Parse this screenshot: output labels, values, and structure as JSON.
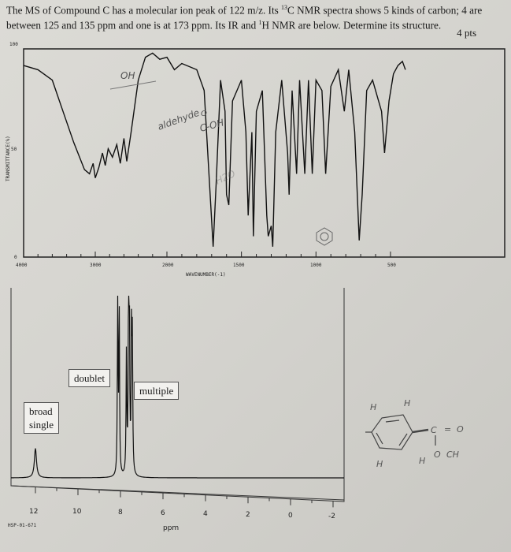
{
  "question": {
    "line1_a": "The MS of Compound C has a molecular ion peak of 122 m/z.  Its ",
    "sup13": "13",
    "line1_b": "C NMR spectra shows 5 kinds of carbon; 4 are between 125 and 135 ppm and one is at 173 ppm.  Its IR and ",
    "sup1": "1",
    "line1_c": "H NMR are below.  Determine its structure.",
    "points": "4 pts"
  },
  "chart_data": [
    {
      "type": "line",
      "title": "",
      "xlabel": "WAVENUMBER(-1)",
      "ylabel": "TRANSMITTANCE(%)",
      "xlim": [
        4000,
        400
      ],
      "ylim": [
        0,
        100
      ],
      "x_ticks": [
        "4000",
        "3000",
        "2000",
        "1500",
        "1000",
        "500"
      ],
      "y_ticks": [
        "100",
        "50",
        "0"
      ],
      "points": [
        [
          4000,
          92
        ],
        [
          3800,
          90
        ],
        [
          3600,
          85
        ],
        [
          3450,
          70
        ],
        [
          3300,
          55
        ],
        [
          3150,
          42
        ],
        [
          3080,
          40
        ],
        [
          3030,
          45
        ],
        [
          3000,
          38
        ],
        [
          2950,
          43
        ],
        [
          2900,
          50
        ],
        [
          2860,
          44
        ],
        [
          2820,
          52
        ],
        [
          2760,
          48
        ],
        [
          2700,
          54
        ],
        [
          2650,
          45
        ],
        [
          2600,
          57
        ],
        [
          2560,
          46
        ],
        [
          2500,
          60
        ],
        [
          2400,
          85
        ],
        [
          2300,
          96
        ],
        [
          2200,
          98
        ],
        [
          2100,
          95
        ],
        [
          2000,
          96
        ],
        [
          1950,
          90
        ],
        [
          1900,
          93
        ],
        [
          1800,
          90
        ],
        [
          1750,
          80
        ],
        [
          1710,
          30
        ],
        [
          1690,
          5
        ],
        [
          1670,
          35
        ],
        [
          1640,
          85
        ],
        [
          1610,
          70
        ],
        [
          1600,
          30
        ],
        [
          1585,
          25
        ],
        [
          1560,
          75
        ],
        [
          1500,
          85
        ],
        [
          1470,
          60
        ],
        [
          1455,
          20
        ],
        [
          1430,
          60
        ],
        [
          1420,
          10
        ],
        [
          1400,
          70
        ],
        [
          1360,
          80
        ],
        [
          1330,
          20
        ],
        [
          1320,
          10
        ],
        [
          1300,
          15
        ],
        [
          1290,
          5
        ],
        [
          1270,
          60
        ],
        [
          1230,
          85
        ],
        [
          1190,
          50
        ],
        [
          1180,
          30
        ],
        [
          1160,
          80
        ],
        [
          1130,
          40
        ],
        [
          1110,
          85
        ],
        [
          1075,
          40
        ],
        [
          1050,
          85
        ],
        [
          1025,
          40
        ],
        [
          1000,
          85
        ],
        [
          960,
          80
        ],
        [
          935,
          40
        ],
        [
          900,
          82
        ],
        [
          850,
          90
        ],
        [
          810,
          70
        ],
        [
          780,
          90
        ],
        [
          740,
          60
        ],
        [
          710,
          8
        ],
        [
          690,
          30
        ],
        [
          660,
          80
        ],
        [
          620,
          85
        ],
        [
          560,
          70
        ],
        [
          540,
          50
        ],
        [
          510,
          75
        ],
        [
          480,
          88
        ],
        [
          450,
          92
        ],
        [
          420,
          94
        ],
        [
          400,
          90
        ]
      ],
      "annotations": [
        "OH",
        "aldehyde",
        "O",
        "C-OH",
        "H2O"
      ]
    },
    {
      "type": "line",
      "title": "",
      "xlabel": "ppm",
      "xlim": [
        13,
        -2.5
      ],
      "x_ticks": [
        "12",
        "10",
        "8",
        "6",
        "4",
        "2",
        "0",
        "-2"
      ],
      "peaks": [
        {
          "ppm": 12.0,
          "height": 0.17,
          "width": 0.06
        },
        {
          "ppm": 8.13,
          "height": 1.0,
          "width": 0.02
        },
        {
          "ppm": 8.06,
          "height": 0.96,
          "width": 0.02
        },
        {
          "ppm": 7.72,
          "height": 0.7,
          "width": 0.02
        },
        {
          "ppm": 7.62,
          "height": 0.92,
          "width": 0.02
        },
        {
          "ppm": 7.58,
          "height": 0.85,
          "width": 0.02
        },
        {
          "ppm": 7.48,
          "height": 0.78,
          "width": 0.02
        },
        {
          "ppm": 7.44,
          "height": 0.74,
          "width": 0.02
        }
      ],
      "labels": {
        "broad": "broad\nsingle",
        "doublet": "doublet",
        "multiple": "multiple"
      },
      "code": "HSP-01-671"
    }
  ],
  "structure": {
    "atoms": [
      "H",
      "H",
      "H",
      "H",
      "C",
      "=",
      "O",
      "O",
      "CH"
    ]
  },
  "colors": {
    "ink": "#1a1a1a",
    "pencil": "#555555",
    "paper": "#dcdbd6"
  }
}
